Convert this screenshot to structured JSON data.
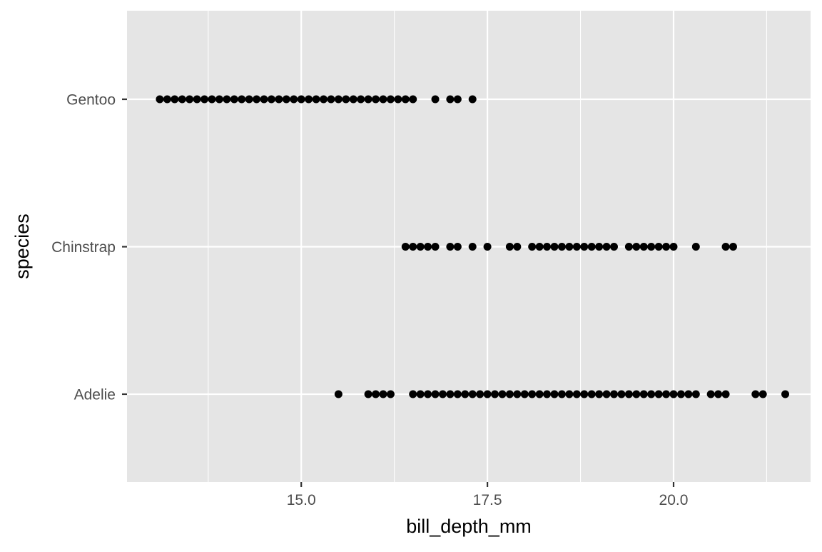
{
  "chart_data": {
    "type": "scatter",
    "title": "",
    "xlabel": "bill_depth_mm",
    "ylabel": "species",
    "xlim": [
      12.66,
      21.84
    ],
    "x_ticks": [
      15.0,
      17.5,
      20.0
    ],
    "x_tick_labels": [
      "15.0",
      "17.5",
      "20.0"
    ],
    "x_minor_ticks": [
      13.75,
      16.25,
      18.75,
      21.25
    ],
    "categories": [
      "Adelie",
      "Chinstrap",
      "Gentoo"
    ],
    "grid": true,
    "legend": "none",
    "colors": {
      "panel_background": "#e5e5e5",
      "grid": "#ffffff",
      "points": "#000000",
      "tick_label": "#4d4d4d",
      "tick_mark": "#333333",
      "axis_title": "#000000"
    },
    "series": [
      {
        "category": "Gentoo",
        "x": [
          13.1,
          13.2,
          13.3,
          13.4,
          13.5,
          13.6,
          13.7,
          13.8,
          13.9,
          14.0,
          14.1,
          14.2,
          14.3,
          14.4,
          14.5,
          14.6,
          14.7,
          14.8,
          14.9,
          15.0,
          15.1,
          15.2,
          15.3,
          15.4,
          15.5,
          15.6,
          15.7,
          15.8,
          15.9,
          16.0,
          16.1,
          16.2,
          16.3,
          16.4,
          16.5,
          16.8,
          17.0,
          17.1,
          17.3
        ]
      },
      {
        "category": "Chinstrap",
        "x": [
          16.4,
          16.5,
          16.6,
          16.7,
          16.8,
          17.0,
          17.1,
          17.3,
          17.5,
          17.8,
          17.9,
          18.1,
          18.2,
          18.3,
          18.4,
          18.5,
          18.6,
          18.7,
          18.8,
          18.9,
          19.0,
          19.1,
          19.2,
          19.4,
          19.5,
          19.6,
          19.7,
          19.8,
          19.9,
          20.0,
          20.3,
          20.7,
          20.8
        ]
      },
      {
        "category": "Adelie",
        "x": [
          15.5,
          15.9,
          16.0,
          16.1,
          16.2,
          16.5,
          16.6,
          16.7,
          16.8,
          16.9,
          17.0,
          17.1,
          17.2,
          17.3,
          17.4,
          17.5,
          17.6,
          17.7,
          17.8,
          17.9,
          18.0,
          18.1,
          18.2,
          18.3,
          18.4,
          18.5,
          18.6,
          18.7,
          18.8,
          18.9,
          19.0,
          19.1,
          19.2,
          19.3,
          19.4,
          19.5,
          19.6,
          19.7,
          19.8,
          19.9,
          20.0,
          20.1,
          20.2,
          20.3,
          20.5,
          20.6,
          20.7,
          21.1,
          21.2,
          21.5
        ]
      }
    ]
  }
}
